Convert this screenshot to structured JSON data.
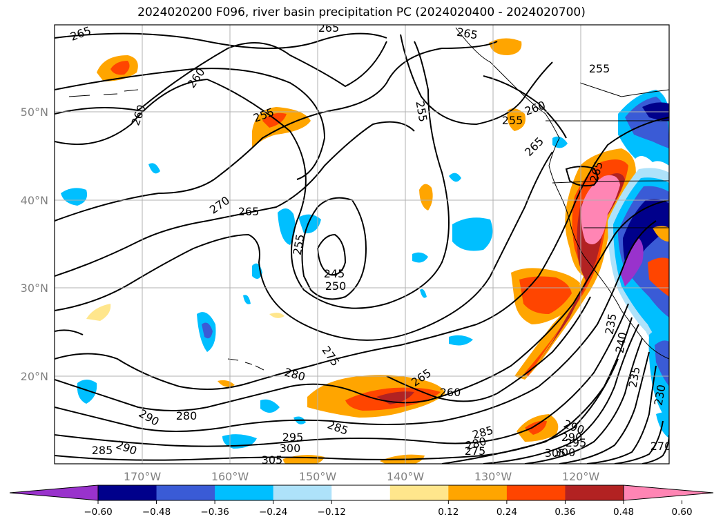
{
  "title": "2024020200 F096, river basin precipitation PC (2024020400 - 2024020700)",
  "map": {
    "lat_ticks": [
      "50°N",
      "40°N",
      "30°N",
      "20°N"
    ],
    "lon_ticks": [
      "170°W",
      "160°W",
      "150°W",
      "140°W",
      "130°W",
      "120°W"
    ],
    "contour_labels": [
      "265",
      "265",
      "265",
      "255",
      "260",
      "260",
      "255",
      "255",
      "260",
      "255",
      "265",
      "265",
      "270",
      "255",
      "245",
      "250",
      "280",
      "275",
      "265",
      "260",
      "280",
      "290",
      "285",
      "285",
      "290",
      "290",
      "295",
      "300",
      "305",
      "285",
      "280",
      "275",
      "290",
      "295",
      "300",
      "305",
      "235",
      "240",
      "235",
      "230",
      "270",
      "265"
    ]
  },
  "colorbar": {
    "ticks": [
      "−0.60",
      "−0.48",
      "−0.36",
      "−0.24",
      "−0.12",
      "0.12",
      "0.24",
      "0.36",
      "0.48",
      "0.60"
    ],
    "colors": [
      "#9932cc",
      "#00008b",
      "#3a5bd6",
      "#00bfff",
      "#aee2fa",
      "#ffffff",
      "#ffe68c",
      "#ffa500",
      "#ff4500",
      "#b22222",
      "#ff85b4"
    ]
  }
}
